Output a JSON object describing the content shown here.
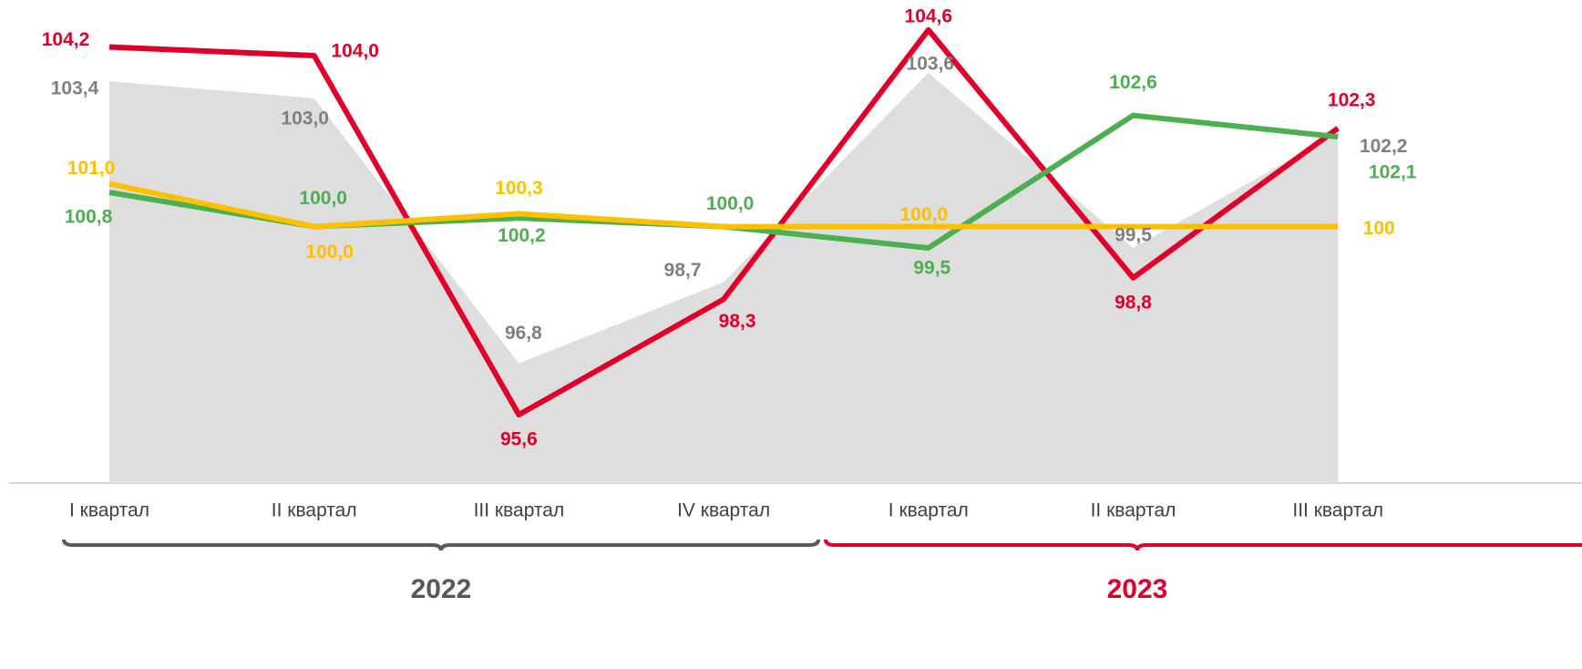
{
  "chart_data": {
    "type": "line",
    "categories": [
      "I квартал",
      "II квартал",
      "III квартал",
      "IV квартал",
      "I квартал",
      "II квартал",
      "III квартал"
    ],
    "groups": [
      {
        "label": "2022",
        "color": "#595959"
      },
      {
        "label": "2023",
        "color": "#e0002a"
      }
    ],
    "ylim": [
      94,
      105.3
    ],
    "series": [
      {
        "name": null,
        "kind": "area",
        "color": "#dedede",
        "label_color": "#808080",
        "values": [
          103.4,
          103.0,
          96.8,
          98.7,
          103.6,
          99.5,
          102.2
        ],
        "value_labels": [
          "103,4",
          "103,0",
          "96,8",
          "98,7",
          "103,6",
          "99,5",
          "102,2"
        ]
      },
      {
        "name": null,
        "kind": "line",
        "color": "#e0002a",
        "label_color": "#e0002a",
        "values": [
          104.2,
          104.0,
          95.6,
          98.3,
          104.6,
          98.8,
          102.3
        ],
        "value_labels": [
          "104,2",
          "104,0",
          "95,6",
          "98,3",
          "104,6",
          "98,8",
          "102,3"
        ]
      },
      {
        "name": null,
        "kind": "line",
        "color": "#4caf50",
        "label_color": "#4caf50",
        "values": [
          100.8,
          100.0,
          100.2,
          100.0,
          99.5,
          102.6,
          102.1
        ],
        "value_labels": [
          "100,8",
          "100,0",
          "100,2",
          "100,0",
          "99,5",
          "102,6",
          "102,1"
        ]
      },
      {
        "name": null,
        "kind": "line",
        "color": "#ffc000",
        "label_color": "#ffc000",
        "values": [
          101.0,
          100.0,
          100.3,
          100.0,
          100.0,
          100.0,
          100.0
        ],
        "value_labels": [
          "101,0",
          "100,0",
          "100,3",
          null,
          "100,0",
          null,
          "100"
        ]
      }
    ]
  }
}
